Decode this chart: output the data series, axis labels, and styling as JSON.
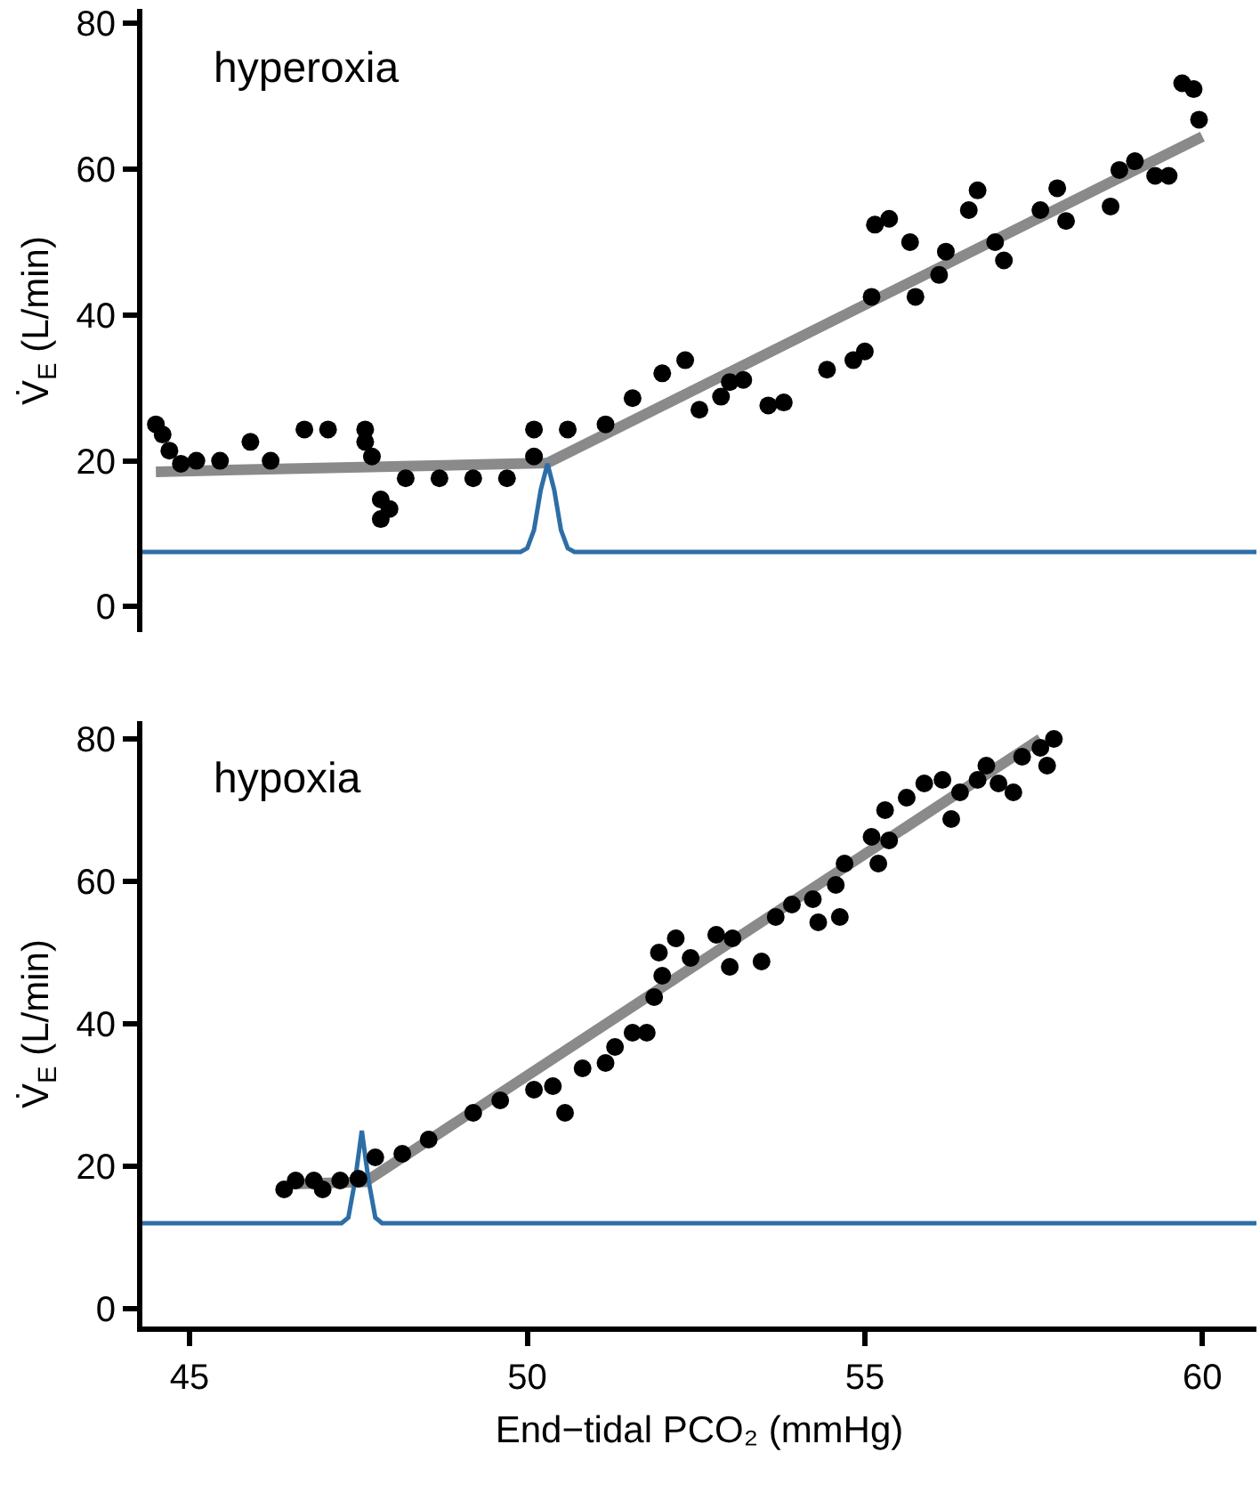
{
  "chart_data": [
    {
      "type": "scatter",
      "annotations": [
        "hyperoxia"
      ],
      "ylabel": "V̇$_{E}$ (L/min)",
      "xlim": [
        44.3,
        60.8
      ],
      "ylim": [
        -3.5,
        82
      ],
      "yticks": [
        0,
        20,
        40,
        60,
        80
      ],
      "tick_labels": "y",
      "grid": false,
      "legend": false,
      "series": [
        {
          "type": "scatter",
          "color": "#000000",
          "marker": "circle",
          "x": [
            44.5,
            44.6,
            44.7,
            44.87,
            45.1,
            45.45,
            45.9,
            46.2,
            46.7,
            47.05,
            47.6,
            47.6,
            47.7,
            47.83,
            47.83,
            47.96,
            48.2,
            48.7,
            49.2,
            49.7,
            50.1,
            50.1,
            50.6,
            51.16,
            51.56,
            52.0,
            52.34,
            52.55,
            52.87,
            53.0,
            53.2,
            53.57,
            53.8,
            54.44,
            54.83,
            55.0,
            55.1,
            55.15,
            55.36,
            55.67,
            55.75,
            56.1,
            56.2,
            56.54,
            56.67,
            56.93,
            57.06,
            57.6,
            57.85,
            57.98,
            58.64,
            58.77,
            59.0,
            59.3,
            59.5,
            59.7,
            59.87,
            59.95
          ],
          "values": [
            25,
            23.6,
            21.4,
            19.6,
            20,
            20,
            22.6,
            20,
            24.3,
            24.3,
            24.3,
            22.6,
            20.6,
            14.7,
            12,
            13.4,
            17.6,
            17.6,
            17.6,
            17.6,
            20.6,
            24.3,
            24.3,
            25,
            28.6,
            32,
            33.8,
            27,
            28.8,
            30.8,
            31.1,
            27.6,
            28,
            32.5,
            33.8,
            35,
            42.5,
            52.4,
            53.2,
            50,
            42.5,
            45.5,
            48.7,
            54.4,
            57.1,
            50,
            47.5,
            54.4,
            57.4,
            52.9,
            54.9,
            59.9,
            61.1,
            59.1,
            59.1,
            71.8,
            71,
            66.8
          ]
        },
        {
          "type": "line",
          "color": "#8a8a8a",
          "line_style": "solid",
          "marker": "none",
          "x": [
            44.5,
            50.3,
            60
          ],
          "values": [
            18.5,
            19.7,
            64.5
          ]
        },
        {
          "type": "line",
          "color": "#2e6ea6",
          "line_style": "solid",
          "marker": "none",
          "x": [
            44.3,
            49.9,
            50.0,
            50.1,
            50.2,
            50.3,
            50.4,
            50.5,
            50.6,
            50.7,
            60.8
          ],
          "values": [
            7.5,
            7.5,
            8,
            10.5,
            16,
            19.6,
            16,
            10.5,
            8,
            7.5,
            7.5
          ]
        }
      ]
    },
    {
      "type": "scatter",
      "annotations": [
        "hypoxia"
      ],
      "xlabel": "End−tidal PCO₂ (mmHg)",
      "ylabel": "V̇$_{E}$ (L/min)",
      "xlim": [
        44.3,
        60.8
      ],
      "xticks": [
        45,
        50,
        55,
        60
      ],
      "ylim": [
        -2.5,
        82.5
      ],
      "yticks": [
        0,
        20,
        40,
        60,
        80
      ],
      "grid": false,
      "legend": false,
      "series": [
        {
          "type": "scatter",
          "color": "#000000",
          "marker": "circle",
          "x": [
            46.4,
            46.57,
            46.84,
            46.97,
            47.23,
            47.5,
            47.75,
            48.15,
            48.54,
            49.2,
            49.6,
            50.1,
            50.38,
            50.56,
            50.82,
            51.16,
            51.3,
            51.56,
            51.77,
            51.88,
            52.0,
            51.95,
            52.2,
            52.42,
            52.8,
            53.0,
            53.04,
            53.47,
            53.68,
            53.92,
            54.23,
            54.31,
            54.57,
            54.63,
            54.7,
            55.1,
            55.36,
            55.2,
            55.3,
            55.62,
            55.88,
            56.15,
            56.41,
            56.28,
            56.67,
            56.8,
            56.98,
            57.2,
            57.33,
            57.6,
            57.7,
            57.8
          ],
          "values": [
            16.75,
            18,
            18,
            16.75,
            18,
            18.25,
            21.25,
            21.75,
            23.75,
            27.5,
            29.25,
            30.75,
            31.25,
            27.5,
            33.75,
            34.5,
            36.75,
            38.75,
            38.75,
            43.75,
            46.75,
            50,
            52,
            49.25,
            52.5,
            48,
            52,
            48.75,
            55,
            56.75,
            57.5,
            54.25,
            59.5,
            55,
            62.5,
            66.25,
            65.75,
            62.5,
            70,
            71.75,
            73.75,
            74.25,
            72.5,
            68.75,
            74.25,
            76.25,
            73.75,
            72.5,
            77.5,
            78.75,
            76.25,
            80
          ]
        },
        {
          "type": "line",
          "color": "#8a8a8a",
          "line_style": "solid",
          "marker": "none",
          "x": [
            46.5,
            47.6,
            57.6
          ],
          "values": [
            17.5,
            17.8,
            80
          ]
        },
        {
          "type": "line",
          "color": "#2e6ea6",
          "line_style": "solid",
          "marker": "none",
          "x": [
            44.3,
            47.25,
            47.35,
            47.45,
            47.55,
            47.65,
            47.75,
            47.85,
            60.8
          ],
          "values": [
            12,
            12,
            12.8,
            18,
            25,
            18,
            12.8,
            12,
            12
          ]
        }
      ]
    }
  ]
}
